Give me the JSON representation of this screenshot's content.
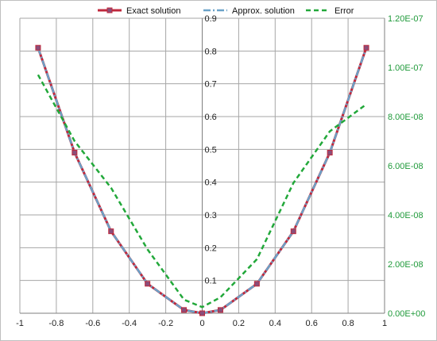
{
  "chart_data": {
    "type": "line",
    "title": "",
    "xlabel": "",
    "ylabel": "",
    "xlim": [
      -1,
      1
    ],
    "ylim": [
      0,
      0.9
    ],
    "y2lim": [
      0,
      1.2e-07
    ],
    "grid": true,
    "legend_position": "top",
    "x_ticks": [
      -1,
      -0.8,
      -0.6,
      -0.4,
      -0.2,
      0,
      0.2,
      0.4,
      0.6,
      0.8,
      1
    ],
    "x_tick_labels": [
      "-1",
      "-0.8",
      "-0.6",
      "-0.4",
      "-0.2",
      "0",
      "0.2",
      "0.4",
      "0.6",
      "0.8",
      "1"
    ],
    "y_ticks": [
      0.1,
      0.2,
      0.3,
      0.4,
      0.5,
      0.6,
      0.7,
      0.8,
      0.9
    ],
    "y_tick_labels": [
      "0.1",
      "0.2",
      "0.3",
      "0.4",
      "0.5",
      "0.6",
      "0.7",
      "0.8",
      "0.9"
    ],
    "y2_ticks": [
      0,
      2e-08,
      4e-08,
      6e-08,
      8e-08,
      1e-07,
      1.2e-07
    ],
    "y2_tick_labels": [
      "0.00E+00",
      "2.00E-08",
      "4.00E-08",
      "6.00E-08",
      "8.00E-08",
      "1.00E-07",
      "1.20E-07"
    ],
    "series": [
      {
        "name": "Exact solution",
        "axis": "left",
        "color": "#c0283c",
        "marker_color": "#8a4e7a",
        "line_style": "solid",
        "marker": "square",
        "x": [
          -0.9,
          -0.7,
          -0.5,
          -0.3,
          -0.1,
          0,
          0.1,
          0.3,
          0.5,
          0.7,
          0.9
        ],
        "y": [
          0.81,
          0.49,
          0.25,
          0.09,
          0.01,
          0,
          0.01,
          0.09,
          0.25,
          0.49,
          0.81
        ]
      },
      {
        "name": "Approx. solution",
        "axis": "left",
        "color": "#6aa2c8",
        "line_style": "dashdot",
        "marker": "none",
        "x": [
          -0.9,
          -0.7,
          -0.5,
          -0.3,
          -0.1,
          0,
          0.1,
          0.3,
          0.5,
          0.7,
          0.9
        ],
        "y": [
          0.81,
          0.49,
          0.25,
          0.09,
          0.01,
          0,
          0.01,
          0.09,
          0.25,
          0.49,
          0.81
        ]
      },
      {
        "name": "Error",
        "axis": "right",
        "color": "#22a83a",
        "line_style": "dashed",
        "marker": "none",
        "x": [
          -0.9,
          -0.7,
          -0.5,
          -0.3,
          -0.1,
          0,
          0.1,
          0.3,
          0.5,
          0.7,
          0.9
        ],
        "y": [
          9.7e-08,
          7e-08,
          5.1e-08,
          2.6e-08,
          5.5e-09,
          2.5e-09,
          6.5e-09,
          2.2e-08,
          5.3e-08,
          7.4e-08,
          8.5e-08
        ]
      }
    ]
  }
}
